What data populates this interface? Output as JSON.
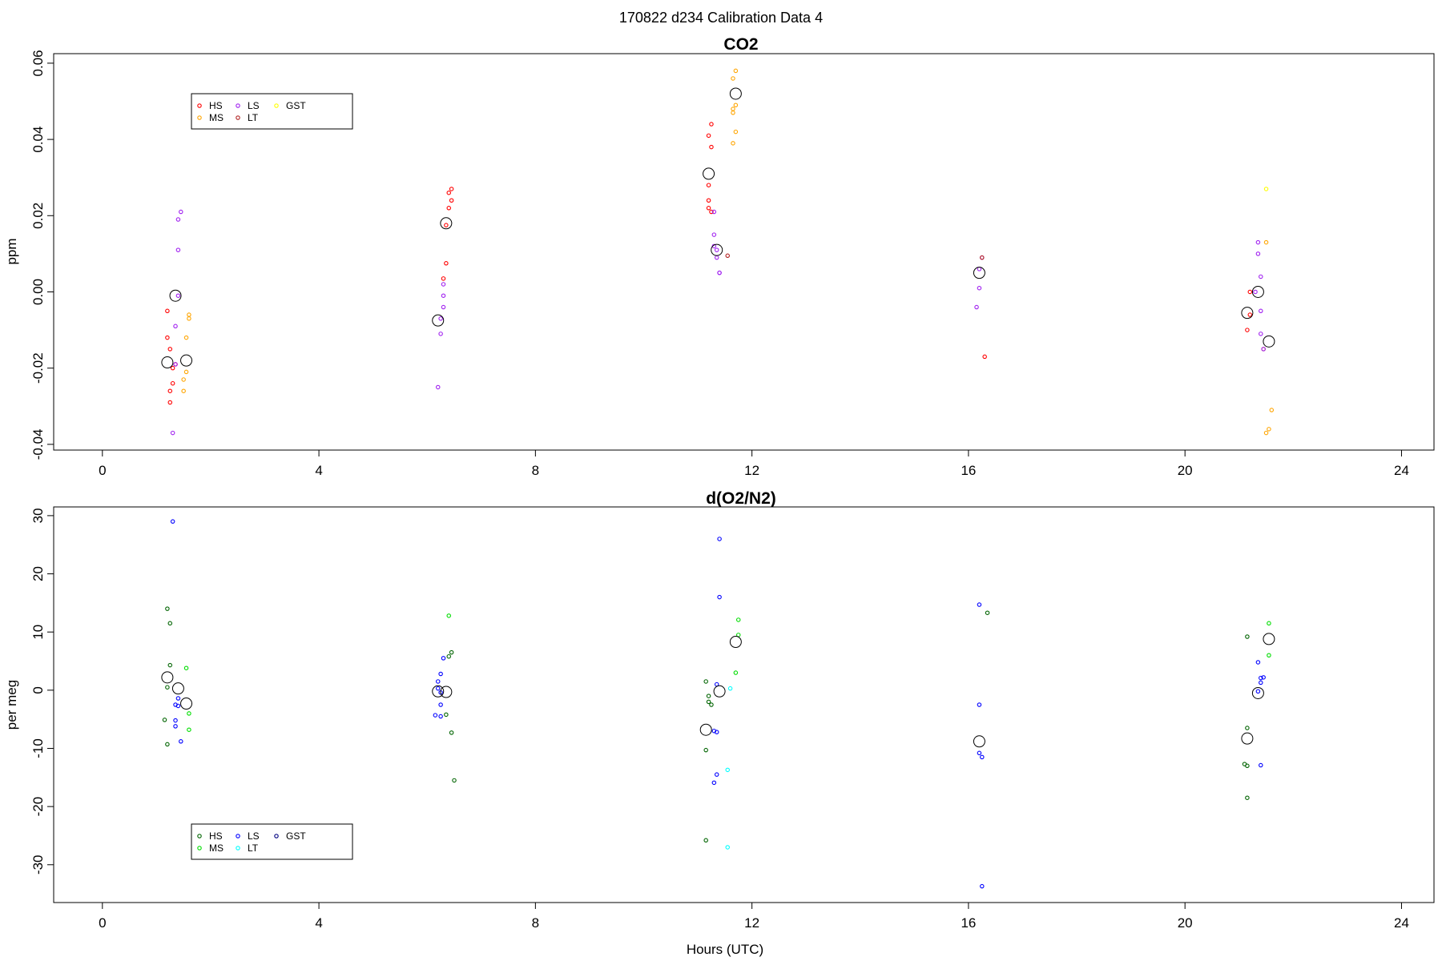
{
  "figure": {
    "suptitle": "170822   d234   Calibration Data 4",
    "xlabel": "Hours (UTC)"
  },
  "chart_data": [
    {
      "type": "scatter",
      "title": "CO2",
      "xlabel": "",
      "ylabel": "ppm",
      "xlim": [
        -0.9,
        24.6
      ],
      "ylim": [
        -0.0415,
        0.0625
      ],
      "xticks": [
        "0",
        "4",
        "8",
        "12",
        "16",
        "20",
        "24"
      ],
      "xtick_values": [
        0,
        4,
        8,
        12,
        16,
        20,
        24
      ],
      "yticks": [
        "-0.04",
        "-0.02",
        "0.00",
        "0.02",
        "0.04",
        "0.06"
      ],
      "ytick_values": [
        -0.04,
        -0.02,
        0.0,
        0.02,
        0.04,
        0.06
      ],
      "grid": false,
      "legend_position": "top-left",
      "legend_columns": [
        [
          "HS",
          "MS"
        ],
        [
          "LS",
          "LT"
        ],
        [
          "GST"
        ]
      ],
      "series": [
        {
          "name": "HS",
          "color": "#ff0000",
          "points": [
            [
              1.2,
              -0.005
            ],
            [
              1.2,
              -0.012
            ],
            [
              1.25,
              -0.015
            ],
            [
              1.3,
              -0.02
            ],
            [
              1.3,
              -0.024
            ],
            [
              1.25,
              -0.026
            ],
            [
              1.25,
              -0.029
            ],
            [
              1.35,
              -0.019
            ],
            [
              6.4,
              0.026
            ],
            [
              6.45,
              0.027
            ],
            [
              6.45,
              0.024
            ],
            [
              6.4,
              0.022
            ],
            [
              6.35,
              0.0175
            ],
            [
              6.35,
              0.0075
            ],
            [
              6.3,
              0.0035
            ],
            [
              11.25,
              0.044
            ],
            [
              11.2,
              0.041
            ],
            [
              11.25,
              0.038
            ],
            [
              11.2,
              0.028
            ],
            [
              11.2,
              0.024
            ],
            [
              11.2,
              0.022
            ],
            [
              11.25,
              0.021
            ],
            [
              16.3,
              -0.017
            ],
            [
              21.15,
              -0.01
            ],
            [
              21.2,
              -0.006
            ],
            [
              21.2,
              0.0
            ]
          ]
        },
        {
          "name": "MS",
          "color": "#ffa500",
          "points": [
            [
              1.6,
              -0.006
            ],
            [
              1.6,
              -0.007
            ],
            [
              1.55,
              -0.012
            ],
            [
              1.55,
              -0.021
            ],
            [
              1.5,
              -0.023
            ],
            [
              1.5,
              -0.026
            ],
            [
              11.7,
              0.058
            ],
            [
              11.65,
              0.056
            ],
            [
              11.7,
              0.049
            ],
            [
              11.65,
              0.048
            ],
            [
              11.65,
              0.047
            ],
            [
              11.7,
              0.042
            ],
            [
              11.65,
              0.039
            ],
            [
              21.5,
              0.013
            ],
            [
              21.45,
              -0.015
            ],
            [
              21.6,
              -0.031
            ],
            [
              21.55,
              -0.036
            ],
            [
              21.5,
              -0.037
            ]
          ]
        },
        {
          "name": "LS",
          "color": "#a020f0",
          "points": [
            [
              1.45,
              0.021
            ],
            [
              1.4,
              0.019
            ],
            [
              1.4,
              0.011
            ],
            [
              1.4,
              -0.001
            ],
            [
              1.35,
              -0.009
            ],
            [
              1.35,
              -0.019
            ],
            [
              1.3,
              -0.037
            ],
            [
              6.3,
              0.002
            ],
            [
              6.3,
              -0.001
            ],
            [
              6.3,
              -0.004
            ],
            [
              6.25,
              -0.007
            ],
            [
              6.25,
              -0.011
            ],
            [
              6.2,
              -0.025
            ],
            [
              11.3,
              0.021
            ],
            [
              11.3,
              0.015
            ],
            [
              11.3,
              0.012
            ],
            [
              11.35,
              0.011
            ],
            [
              11.35,
              0.009
            ],
            [
              11.4,
              0.005
            ],
            [
              11.4,
              0.005
            ],
            [
              16.25,
              0.009
            ],
            [
              16.2,
              0.006
            ],
            [
              16.2,
              0.001
            ],
            [
              16.15,
              -0.004
            ],
            [
              21.35,
              0.013
            ],
            [
              21.35,
              0.01
            ],
            [
              21.4,
              0.004
            ],
            [
              21.3,
              0.0
            ],
            [
              21.4,
              -0.005
            ],
            [
              21.4,
              -0.011
            ],
            [
              21.45,
              -0.015
            ]
          ]
        },
        {
          "name": "LT",
          "color": "#b22222",
          "points": [
            [
              11.55,
              0.0095
            ],
            [
              16.25,
              0.009
            ]
          ]
        },
        {
          "name": "GST",
          "color": "#ffff00",
          "points": [
            [
              21.5,
              0.027
            ]
          ]
        },
        {
          "name": "",
          "color": "#000000",
          "large": true,
          "points": [
            [
              1.2,
              -0.0185
            ],
            [
              1.35,
              -0.001
            ],
            [
              1.55,
              -0.018
            ],
            [
              6.2,
              -0.0075
            ],
            [
              6.35,
              0.018
            ],
            [
              11.2,
              0.031
            ],
            [
              11.35,
              0.011
            ],
            [
              11.7,
              0.052
            ],
            [
              16.2,
              0.005
            ],
            [
              21.15,
              -0.0055
            ],
            [
              21.35,
              0.0
            ],
            [
              21.55,
              -0.013
            ]
          ]
        }
      ]
    },
    {
      "type": "scatter",
      "title": "d(O2/N2)",
      "xlabel": "Hours (UTC)",
      "ylabel": "per meg",
      "xlim": [
        -0.9,
        24.6
      ],
      "ylim": [
        -36.5,
        31.5
      ],
      "xticks": [
        "0",
        "4",
        "8",
        "12",
        "16",
        "20",
        "24"
      ],
      "xtick_values": [
        0,
        4,
        8,
        12,
        16,
        20,
        24
      ],
      "yticks": [
        "-30",
        "-20",
        "-10",
        "0",
        "10",
        "20",
        "30"
      ],
      "ytick_values": [
        -30,
        -20,
        -10,
        0,
        10,
        20,
        30
      ],
      "grid": false,
      "legend_position": "bottom-left",
      "legend_columns": [
        [
          "HS",
          "MS"
        ],
        [
          "LS",
          "LT"
        ],
        [
          "GST"
        ]
      ],
      "series": [
        {
          "name": "HS",
          "color": "#006400",
          "points": [
            [
              1.2,
              14
            ],
            [
              1.25,
              11.5
            ],
            [
              1.25,
              4.3
            ],
            [
              1.2,
              0.5
            ],
            [
              1.15,
              -5.1
            ],
            [
              1.2,
              -9.3
            ],
            [
              6.4,
              5.8
            ],
            [
              6.45,
              6.5
            ],
            [
              6.35,
              -4.2
            ],
            [
              6.45,
              -7.3
            ],
            [
              6.5,
              -15.5
            ],
            [
              11.15,
              1.5
            ],
            [
              11.2,
              -1
            ],
            [
              11.2,
              -2
            ],
            [
              11.25,
              -2.5
            ],
            [
              11.15,
              -10.3
            ],
            [
              11.15,
              -25.8
            ],
            [
              16.35,
              13.3
            ],
            [
              21.15,
              9.2
            ],
            [
              21.15,
              -6.5
            ],
            [
              21.1,
              -12.7
            ],
            [
              21.15,
              -13
            ],
            [
              21.15,
              -18.5
            ]
          ]
        },
        {
          "name": "MS",
          "color": "#00dd00",
          "points": [
            [
              1.55,
              3.8
            ],
            [
              1.6,
              -4
            ],
            [
              1.6,
              -6.8
            ],
            [
              6.4,
              12.8
            ],
            [
              11.75,
              12.1
            ],
            [
              11.75,
              9.5
            ],
            [
              11.7,
              3
            ],
            [
              21.55,
              11.5
            ],
            [
              21.55,
              6
            ]
          ]
        },
        {
          "name": "LS",
          "color": "#0000ff",
          "points": [
            [
              1.3,
              29
            ],
            [
              1.4,
              -1.4
            ],
            [
              1.35,
              -2.5
            ],
            [
              1.4,
              -2.7
            ],
            [
              1.35,
              -5.2
            ],
            [
              1.35,
              -6.2
            ],
            [
              1.45,
              -8.8
            ],
            [
              6.3,
              5.5
            ],
            [
              6.25,
              2.8
            ],
            [
              6.2,
              1.5
            ],
            [
              6.2,
              0.3
            ],
            [
              6.25,
              -0.4
            ],
            [
              6.25,
              -2.5
            ],
            [
              6.15,
              -4.3
            ],
            [
              6.25,
              -4.5
            ],
            [
              11.4,
              26
            ],
            [
              11.4,
              16
            ],
            [
              11.35,
              1
            ],
            [
              11.3,
              -7
            ],
            [
              11.35,
              -7.2
            ],
            [
              11.35,
              -14.5
            ],
            [
              11.3,
              -15.9
            ],
            [
              16.2,
              14.7
            ],
            [
              16.2,
              -2.5
            ],
            [
              16.2,
              -10.8
            ],
            [
              16.25,
              -11.5
            ],
            [
              16.25,
              -33.7
            ],
            [
              21.35,
              4.8
            ],
            [
              21.45,
              2.2
            ],
            [
              21.4,
              2.1
            ],
            [
              21.4,
              1.3
            ],
            [
              21.35,
              -0.2
            ],
            [
              21.4,
              -12.9
            ]
          ]
        },
        {
          "name": "LT",
          "color": "#00ffff",
          "points": [
            [
              11.6,
              0.3
            ],
            [
              11.55,
              -13.7
            ],
            [
              11.55,
              -27
            ]
          ]
        },
        {
          "name": "GST",
          "color": "#000080",
          "points": []
        },
        {
          "name": "",
          "color": "#000000",
          "large": true,
          "points": [
            [
              1.2,
              2.2
            ],
            [
              1.4,
              0.3
            ],
            [
              1.55,
              -2.3
            ],
            [
              6.2,
              -0.2
            ],
            [
              6.35,
              -0.3
            ],
            [
              11.15,
              -6.8
            ],
            [
              11.4,
              -0.2
            ],
            [
              11.7,
              8.3
            ],
            [
              16.2,
              -8.8
            ],
            [
              21.15,
              -8.3
            ],
            [
              21.35,
              -0.5
            ],
            [
              21.55,
              8.8
            ]
          ]
        }
      ]
    }
  ]
}
